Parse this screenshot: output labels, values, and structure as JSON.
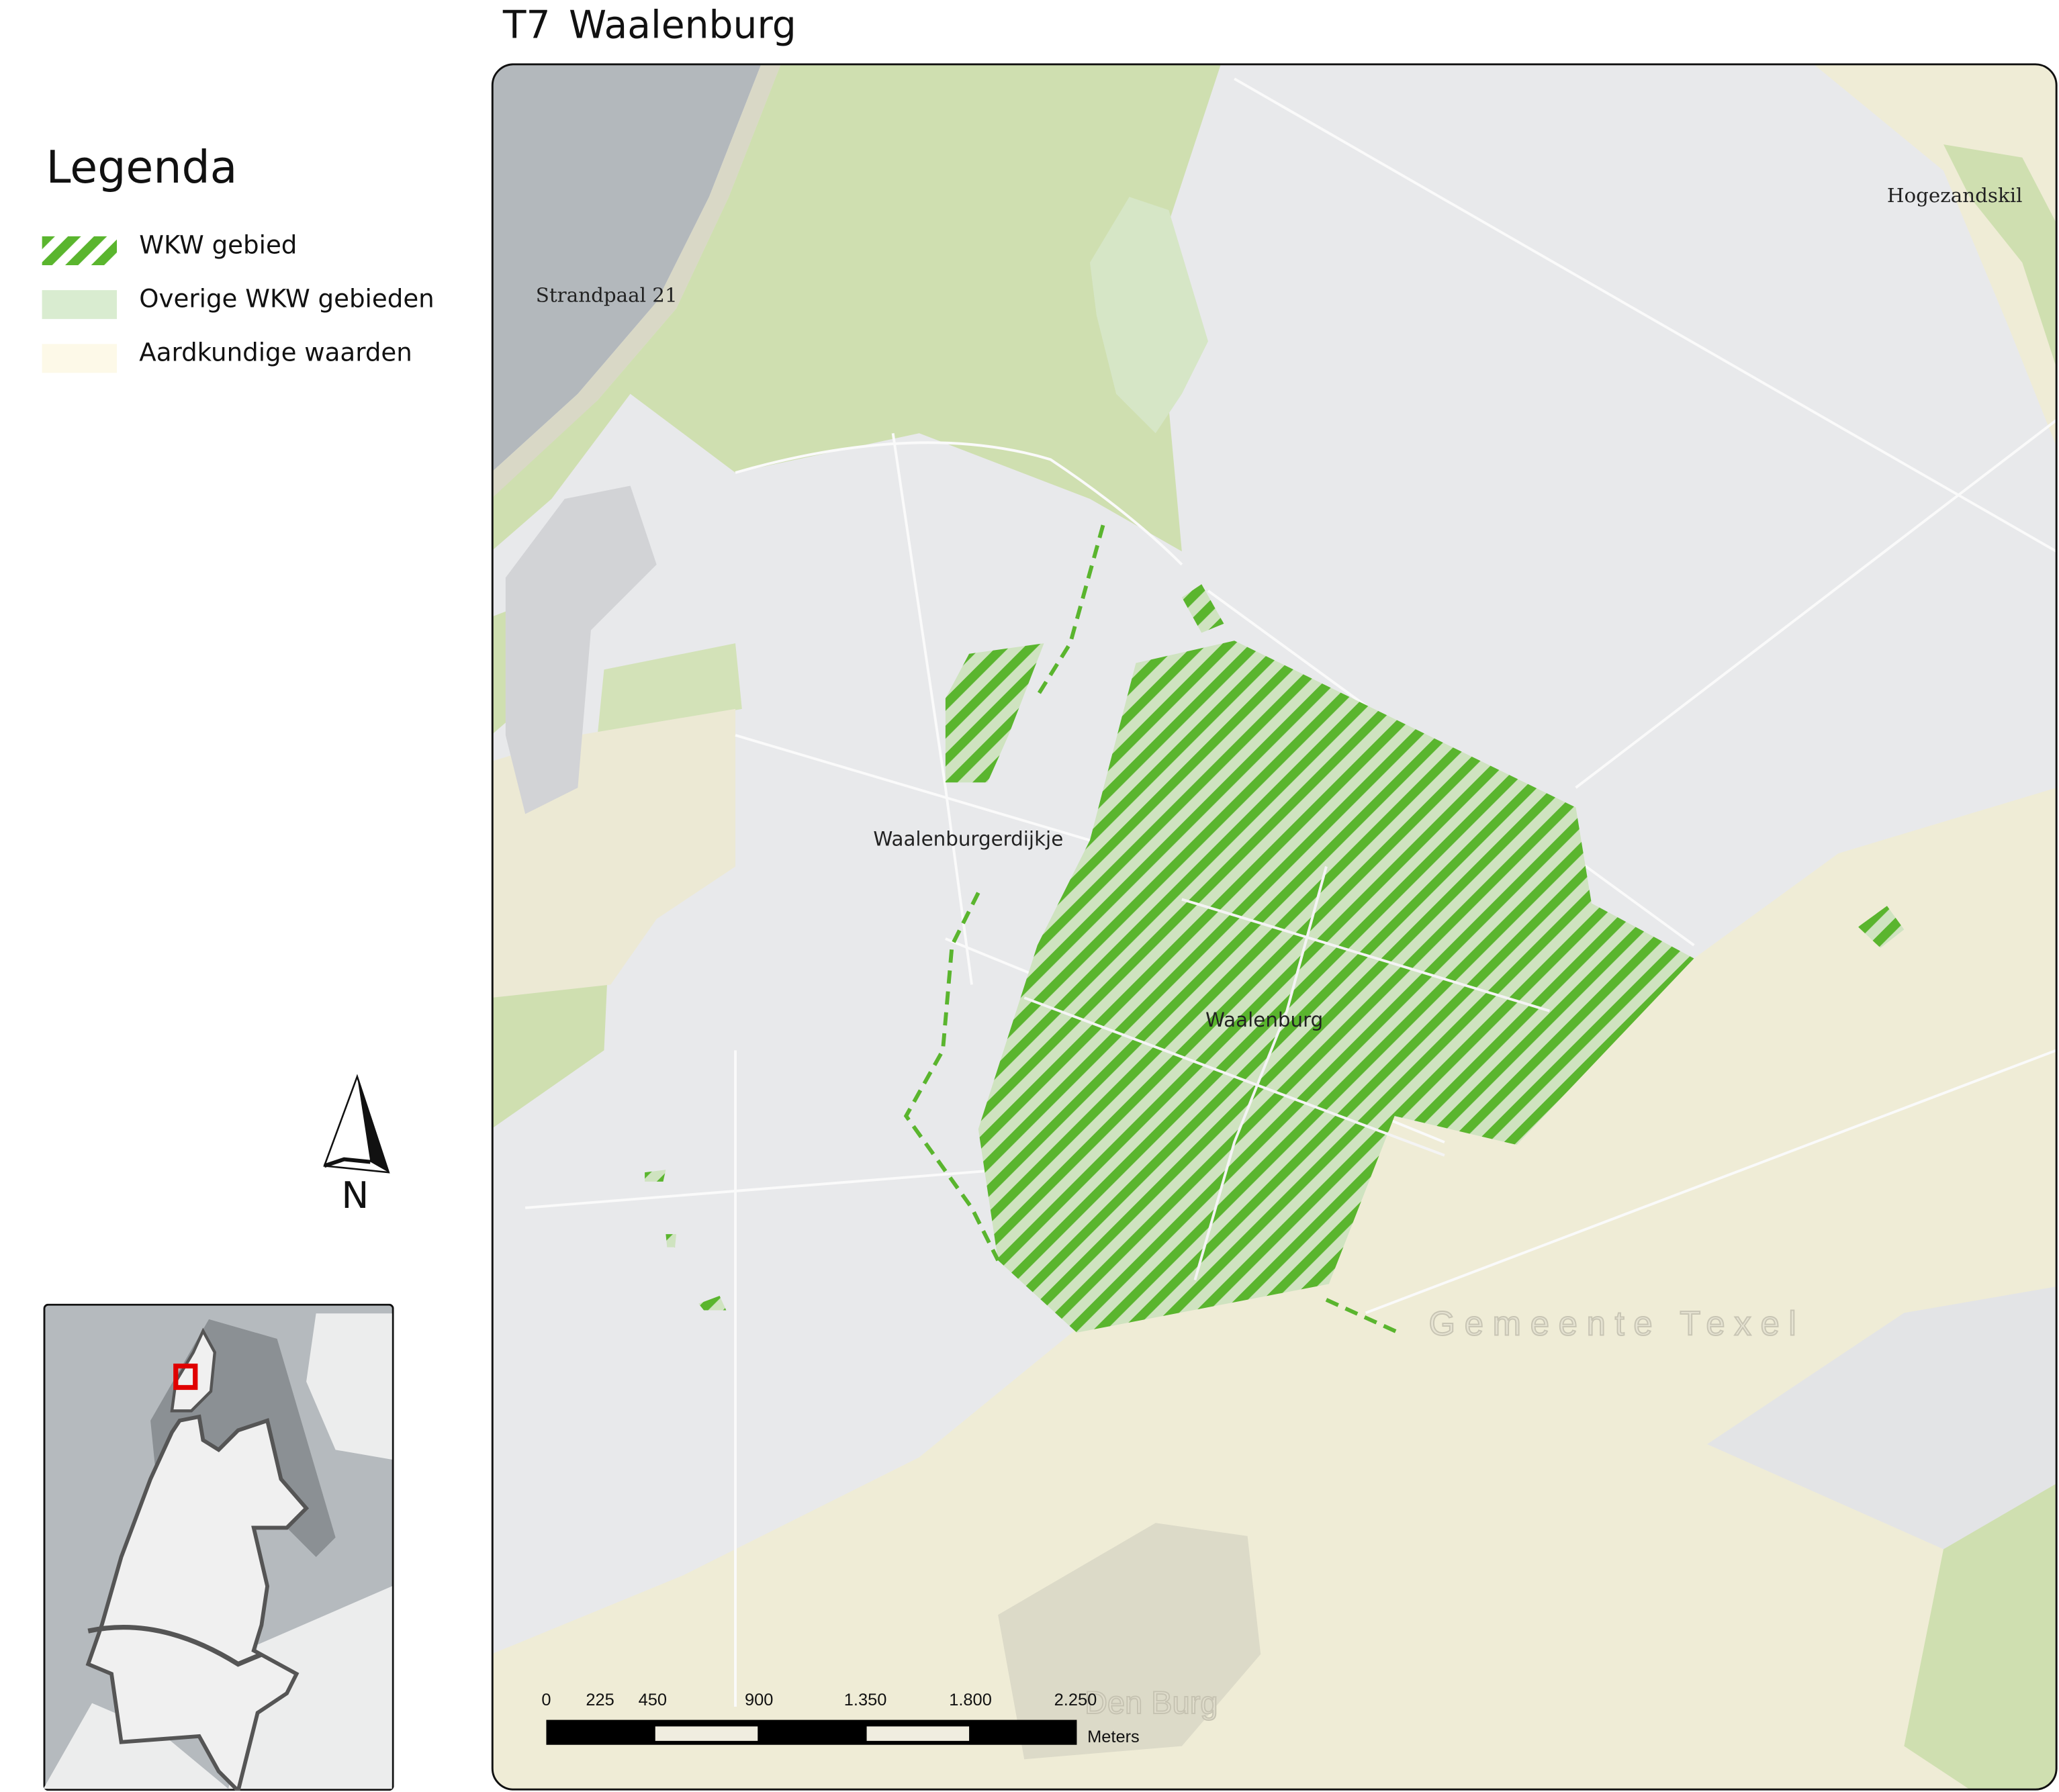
{
  "title": {
    "code": "T7",
    "name": "Waalenburg"
  },
  "legend": {
    "title": "Legenda",
    "items": [
      {
        "label": "WKW gebied",
        "symbol": "hatched-green",
        "color": "#5ab52e"
      },
      {
        "label": "Overige WKW gebieden",
        "symbol": "fill",
        "color": "#d9ecd0"
      },
      {
        "label": "Aardkundige waarden",
        "symbol": "fill",
        "color": "#fdf9e8"
      }
    ]
  },
  "map_labels": {
    "strandpaal": "Strandpaal 21",
    "hogezandskil": "Hogezandskil",
    "waalenburgerdijkje": "Waalenburgerdijkje",
    "waalenburg": "Waalenburg",
    "gemeente": "Gemeente Texel",
    "den_burg": "Den Burg"
  },
  "scale_bar": {
    "ticks": [
      "0",
      "225",
      "450",
      "900",
      "1.350",
      "1.800",
      "2.250"
    ],
    "units": "Meters"
  },
  "north_arrow": {
    "label": "N"
  },
  "colors": {
    "wkw_stripe": "#5ab52e",
    "wkw_light": "#cfe3c0",
    "sea": "#b3b8bc",
    "dune": "#cfdfb0",
    "polder": "#e8e9eb",
    "aardkundig": "#efecd6",
    "inset_highlight": "#e00000"
  }
}
